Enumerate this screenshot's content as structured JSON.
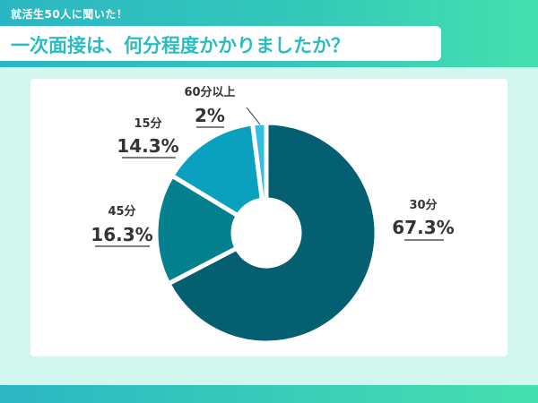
{
  "header": {
    "subtitle": "就活生50人に聞いた！",
    "title": "一次面接は、何分程度かかりましたか？"
  },
  "chart_data": {
    "type": "pie",
    "donut": true,
    "categories": [
      "30分",
      "45分",
      "15分",
      "60分以上"
    ],
    "values": [
      67.3,
      16.3,
      14.3,
      2
    ],
    "labels": [
      "67.3%",
      "16.3%",
      "14.3%",
      "2%"
    ],
    "colors": [
      "#045f70",
      "#05808f",
      "#0aa1be",
      "#32bedf"
    ],
    "legend": "none"
  }
}
